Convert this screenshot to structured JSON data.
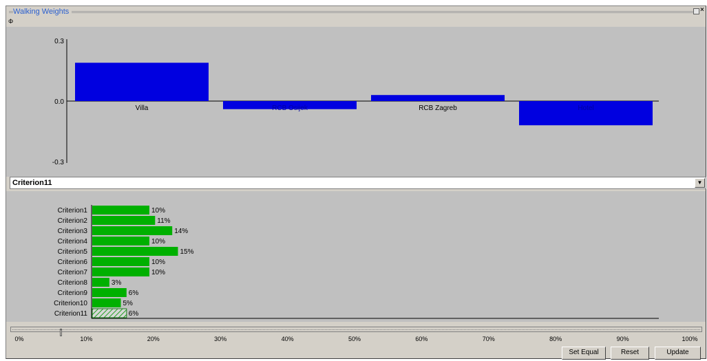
{
  "window": {
    "title": "Walking Weights",
    "close_glyph": "×"
  },
  "top_chart": {
    "chart_data": {
      "type": "bar",
      "categories": [
        "Villa",
        "RCB Osijek",
        "RCB Zagreb",
        "Hotel"
      ],
      "values": [
        0.19,
        -0.04,
        0.03,
        -0.12
      ],
      "yticks": [
        "0.3",
        "0.0",
        "-0.3"
      ],
      "ylim": [
        -0.3,
        0.3
      ],
      "bar_color": "#0000e0"
    }
  },
  "criterion_select": {
    "value": "Criterion11"
  },
  "bottom_chart": {
    "chart_data": {
      "type": "bar",
      "orientation": "horizontal",
      "categories": [
        "Criterion1",
        "Criterion2",
        "Criterion3",
        "Criterion4",
        "Criterion5",
        "Criterion6",
        "Criterion7",
        "Criterion8",
        "Criterion9",
        "Criterion10",
        "Criterion11"
      ],
      "values": [
        10,
        11,
        14,
        10,
        15,
        10,
        10,
        3,
        6,
        5,
        6
      ],
      "labels": [
        "10%",
        "11%",
        "14%",
        "10%",
        "15%",
        "10%",
        "10%",
        "3%",
        "6%",
        "5%",
        "6%"
      ],
      "selected": "Criterion11",
      "bar_color": "#00b000"
    }
  },
  "slider": {
    "value_percent": 6,
    "ticks": [
      "0%",
      "10%",
      "20%",
      "30%",
      "40%",
      "50%",
      "60%",
      "70%",
      "80%",
      "90%",
      "100%"
    ]
  },
  "buttons": {
    "set_equal": "Set Equal",
    "reset": "Reset",
    "update": "Update"
  }
}
